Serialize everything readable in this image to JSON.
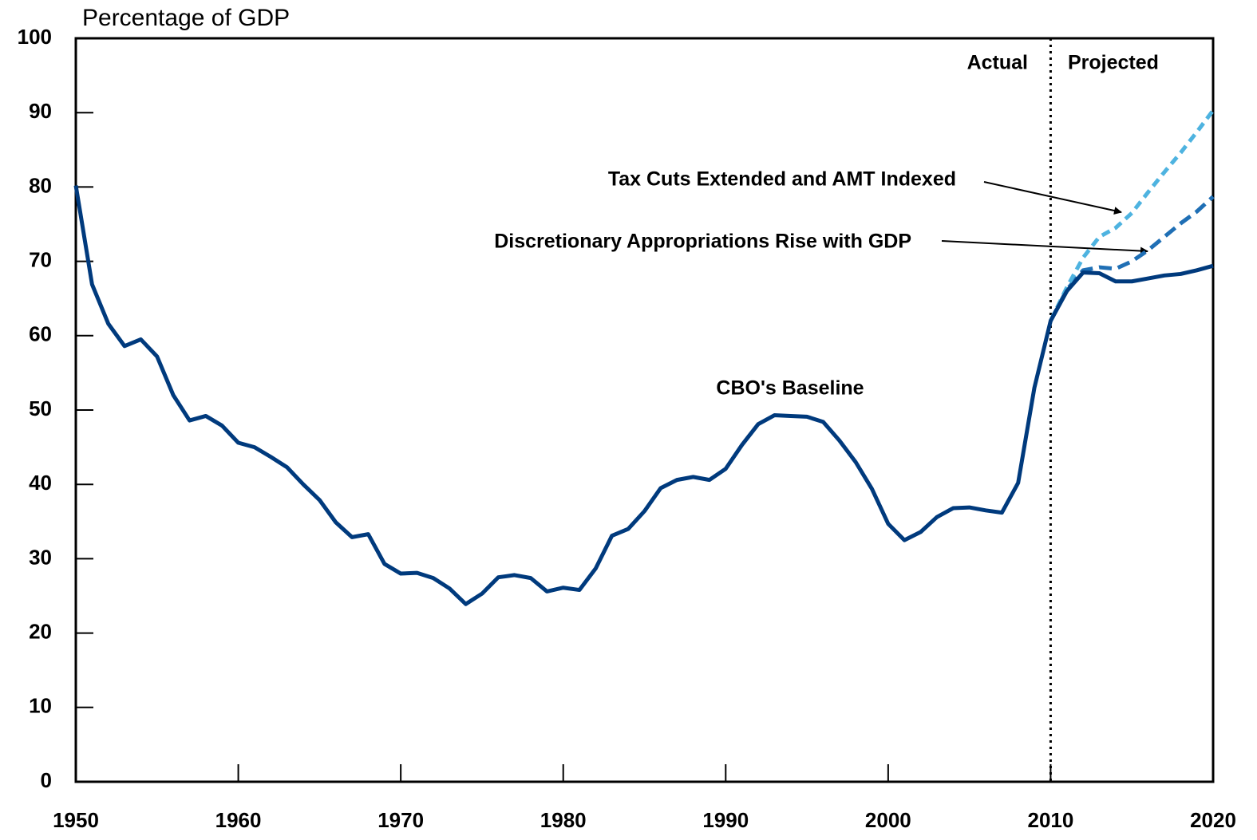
{
  "chart_data": {
    "type": "line",
    "y_label": "Percentage of GDP",
    "annotations": [
      "Actual",
      "Projected"
    ],
    "projection_start": 2010,
    "x": [
      1950,
      1951,
      1952,
      1953,
      1954,
      1955,
      1956,
      1957,
      1958,
      1959,
      1960,
      1961,
      1962,
      1963,
      1964,
      1965,
      1966,
      1967,
      1968,
      1969,
      1970,
      1971,
      1972,
      1973,
      1974,
      1975,
      1976,
      1977,
      1978,
      1979,
      1980,
      1981,
      1982,
      1983,
      1984,
      1985,
      1986,
      1987,
      1988,
      1989,
      1990,
      1991,
      1992,
      1993,
      1994,
      1995,
      1996,
      1997,
      1998,
      1999,
      2000,
      2001,
      2002,
      2003,
      2004,
      2005,
      2006,
      2007,
      2008,
      2009,
      2010,
      2011,
      2012,
      2013,
      2014,
      2015,
      2016,
      2017,
      2018,
      2019,
      2020
    ],
    "series": [
      {
        "name": "CBO's Baseline",
        "color": "#003a7d",
        "dash": "none",
        "values": [
          80.2,
          66.9,
          61.6,
          58.6,
          59.5,
          57.2,
          52.0,
          48.6,
          49.2,
          47.9,
          45.6,
          45.0,
          43.7,
          42.3,
          40.0,
          37.9,
          34.9,
          32.9,
          33.3,
          29.3,
          28.0,
          28.1,
          27.4,
          26.0,
          23.9,
          25.3,
          27.5,
          27.8,
          27.4,
          25.6,
          26.1,
          25.8,
          28.7,
          33.1,
          34.0,
          36.4,
          39.5,
          40.6,
          41.0,
          40.6,
          42.1,
          45.3,
          48.1,
          49.3,
          49.2,
          49.1,
          48.4,
          45.9,
          43.0,
          39.4,
          34.7,
          32.5,
          33.6,
          35.6,
          36.8,
          36.9,
          36.5,
          36.2,
          40.2,
          53.0,
          62.0,
          66.0,
          68.5,
          68.4,
          67.3,
          67.3,
          67.7,
          68.1,
          68.3,
          68.8,
          69.4
        ]
      },
      {
        "name": "Tax Cuts Extended and AMT Indexed",
        "color": "#4eb3e0",
        "dash": "11 7",
        "values": [
          null,
          null,
          null,
          null,
          null,
          null,
          null,
          null,
          null,
          null,
          null,
          null,
          null,
          null,
          null,
          null,
          null,
          null,
          null,
          null,
          null,
          null,
          null,
          null,
          null,
          null,
          null,
          null,
          null,
          null,
          null,
          null,
          null,
          null,
          null,
          null,
          null,
          null,
          null,
          null,
          null,
          null,
          null,
          null,
          null,
          null,
          null,
          null,
          null,
          null,
          null,
          null,
          null,
          null,
          null,
          null,
          null,
          null,
          null,
          null,
          62.0,
          66.5,
          70.5,
          73.3,
          74.5,
          76.5,
          79.3,
          82.0,
          84.6,
          87.4,
          90.3
        ]
      },
      {
        "name": "Discretionary Appropriations Rise with GDP",
        "color": "#1f6fb5",
        "dash": "16 8",
        "values": [
          null,
          null,
          null,
          null,
          null,
          null,
          null,
          null,
          null,
          null,
          null,
          null,
          null,
          null,
          null,
          null,
          null,
          null,
          null,
          null,
          null,
          null,
          null,
          null,
          null,
          null,
          null,
          null,
          null,
          null,
          null,
          null,
          null,
          null,
          null,
          null,
          null,
          null,
          null,
          null,
          null,
          null,
          null,
          null,
          null,
          null,
          null,
          null,
          null,
          null,
          null,
          null,
          null,
          null,
          null,
          null,
          null,
          null,
          null,
          null,
          62.0,
          66.2,
          68.8,
          69.2,
          69.0,
          70.0,
          71.5,
          73.3,
          75.1,
          76.7,
          78.7
        ]
      }
    ],
    "xlim": [
      1950,
      2020
    ],
    "xticks": [
      1950,
      1960,
      1970,
      1980,
      1990,
      2000,
      2010,
      2020
    ],
    "ylim": [
      0,
      100
    ],
    "yticks": [
      0,
      10,
      20,
      30,
      40,
      50,
      60,
      70,
      80,
      90,
      100
    ],
    "grid": false
  }
}
